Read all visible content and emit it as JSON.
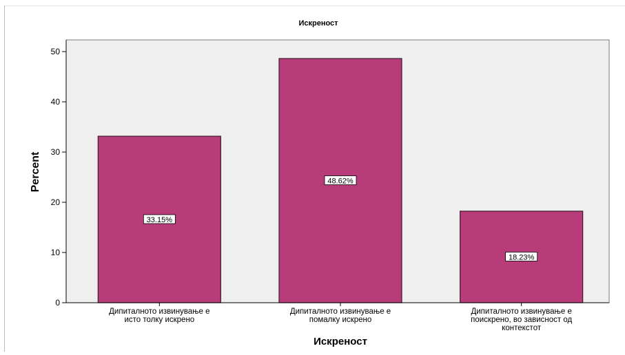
{
  "chart_data": {
    "type": "bar",
    "title": "Искреност",
    "xlabel": "Искреност",
    "ylabel": "Percent",
    "ylim": [
      0,
      50
    ],
    "yticks": [
      0,
      10,
      20,
      30,
      40,
      50
    ],
    "categories": [
      [
        "Дипиталното извинување е",
        "исто толку искрено"
      ],
      [
        "Дипиталното извинување е",
        "помалку искрено"
      ],
      [
        "Дипиталното извинување е",
        "поискрено, во зависност од",
        "контекстот"
      ]
    ],
    "values": [
      33.15,
      48.62,
      18.23
    ],
    "data_labels": [
      "33.15%",
      "48.62%",
      "18.23%"
    ],
    "grid": false,
    "colors": {
      "bar": "#b83b7a",
      "bar_edge": "#3d1a2c",
      "plot_bg": "#efefef",
      "axis": "#000000"
    }
  }
}
